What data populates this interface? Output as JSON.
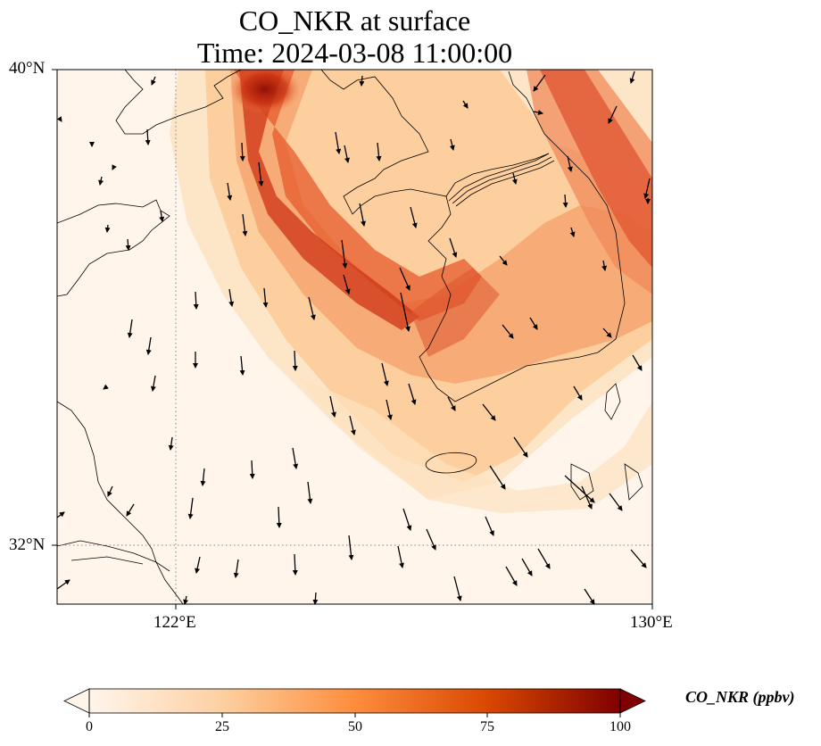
{
  "title": {
    "line1": "CO_NKR at surface",
    "line2": "Time: 2024-03-08 11:00:00"
  },
  "axes": {
    "lat_labels": [
      "40°N",
      "32°N"
    ],
    "lon_labels": [
      "122°E",
      "130°E"
    ]
  },
  "colorbar": {
    "label": "CO_NKR (ppbv)",
    "ticks": [
      "0",
      "25",
      "50",
      "75",
      "100"
    ],
    "colormap": [
      "#fff5eb",
      "#fdd0a2",
      "#fd8d3c",
      "#d94801",
      "#8c0d04",
      "#7f0000"
    ]
  },
  "chart_data": {
    "type": "heatmap",
    "variable": "CO_NKR",
    "units": "ppbv",
    "level": "surface",
    "time": "2024-03-08 11:00:00",
    "lon_range": [
      120,
      130
    ],
    "lat_range": [
      31,
      40
    ],
    "vmin": 0,
    "vmax": 100,
    "gridlines": {
      "lon": [
        122
      ],
      "lat": [
        32
      ]
    },
    "colorbar_extend": "both"
  }
}
